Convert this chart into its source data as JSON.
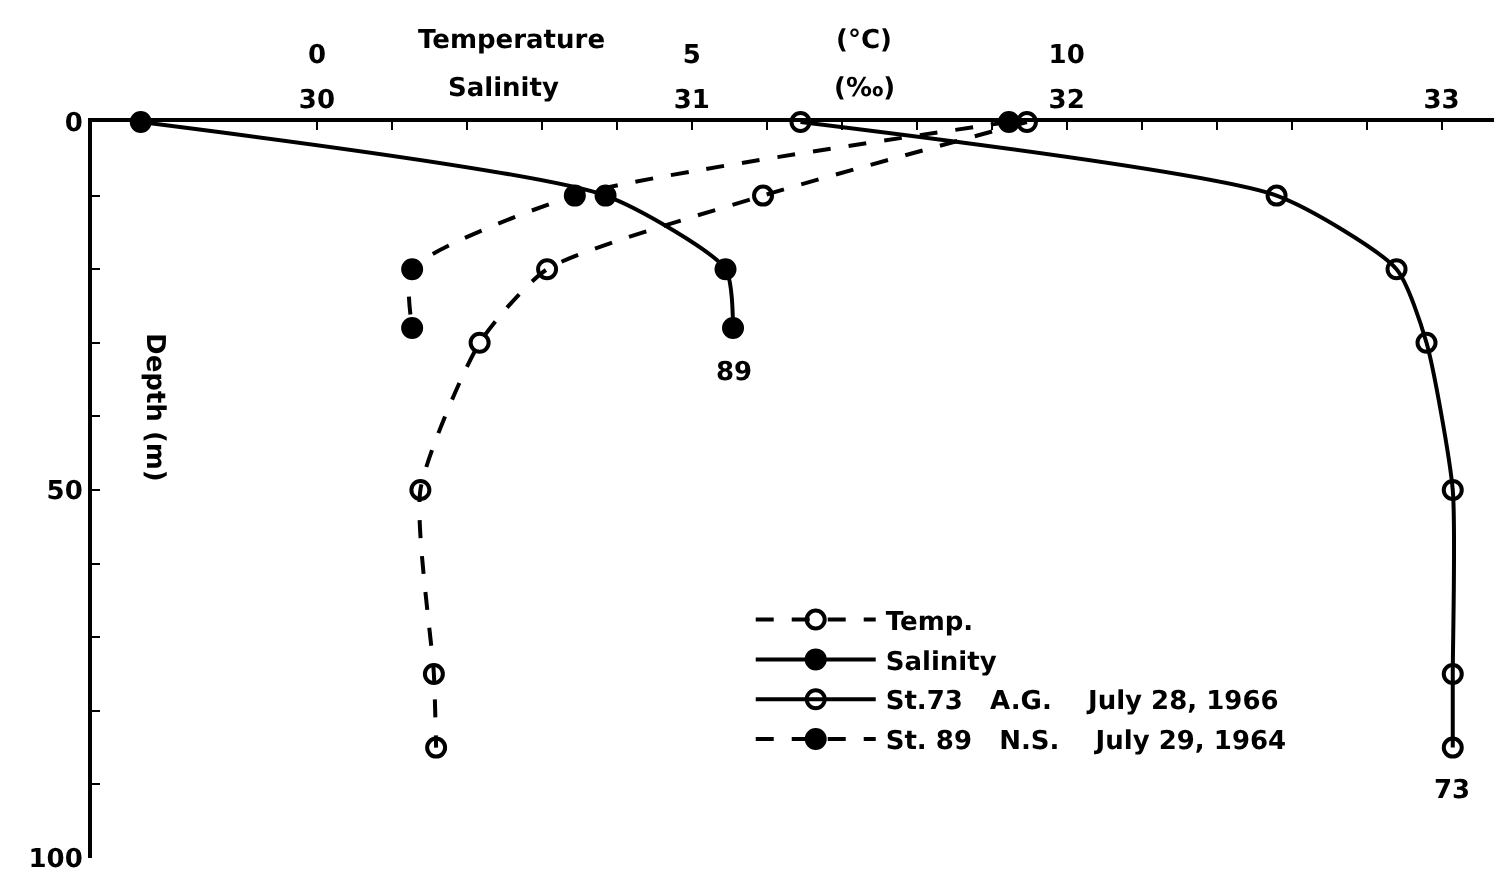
{
  "chart_data": {
    "type": "line",
    "xlabel": "Salinity",
    "x2label": "Temperature",
    "ylabel": "Depth (m)",
    "xlim": [
      29.4,
      33.14
    ],
    "x2lim": [
      -3,
      15.7
    ],
    "ylim": [
      100,
      0
    ],
    "xticks": [
      30,
      {
        "value": 30.2,
        "label": null
      },
      {
        "value": 30.4,
        "label": null
      },
      {
        "value": 30.6,
        "label": null
      },
      {
        "value": 30.8,
        "label": null
      },
      31,
      {
        "value": 31.2,
        "label": null
      },
      {
        "value": 31.4,
        "label": null
      },
      {
        "value": 31.6,
        "label": null
      },
      {
        "value": 31.8,
        "label": null
      },
      32,
      {
        "value": 32.2,
        "label": null
      },
      {
        "value": 32.4,
        "label": null
      },
      {
        "value": 32.6,
        "label": null
      },
      {
        "value": 32.8,
        "label": null
      },
      33
    ],
    "x2ticks": [
      0,
      5,
      10
    ],
    "yticks": [
      0,
      {
        "value": 10,
        "label": null
      },
      {
        "value": 20,
        "label": null
      },
      {
        "value": 30,
        "label": null
      },
      {
        "value": 40,
        "label": null
      },
      50,
      {
        "value": 60,
        "label": null
      },
      {
        "value": 70,
        "label": null
      },
      {
        "value": 80,
        "label": null
      },
      {
        "value": 90,
        "label": null
      },
      100
    ],
    "series": [
      {
        "name": "Temp.",
        "color": "#000000",
        "axis": "x2",
        "line_style": "dashed",
        "marker": "circle-open",
        "x": [
          9.47,
          5.95,
          3.07,
          2.17,
          1.38,
          1.56,
          1.59
        ],
        "values": [
          0,
          10,
          20,
          30,
          50,
          75,
          85
        ]
      },
      {
        "name": "St.73   A.G.    July 28, 1966",
        "color": "#000000",
        "line_style": "solid",
        "marker": "circle-open",
        "x": [
          31.29,
          32.56,
          32.88,
          32.96,
          33.03,
          33.03,
          33.03
        ],
        "values": [
          0,
          10,
          20,
          30,
          50,
          75,
          85
        ]
      },
      {
        "name": "St. 89   N.S.    July 29, 1964",
        "color": "#000000",
        "axis": "x2",
        "line_style": "dashed",
        "marker": "circle",
        "x": [
          9.23,
          3.44,
          1.27,
          1.27
        ],
        "values": [
          0,
          10,
          20,
          28
        ]
      },
      {
        "name": "Salinity",
        "color": "#000000",
        "line_style": "solid",
        "marker": "circle",
        "x": [
          29.53,
          30.77,
          31.09,
          31.11
        ],
        "values": [
          0,
          10,
          20,
          28
        ]
      }
    ],
    "legend": "bottom right",
    "annotations": [
      "(°C)",
      "(‰)",
      {
        "text": "89",
        "x": 31.11,
        "y": 28
      },
      {
        "text": "73",
        "x": 33.03,
        "y": 85
      }
    ]
  }
}
